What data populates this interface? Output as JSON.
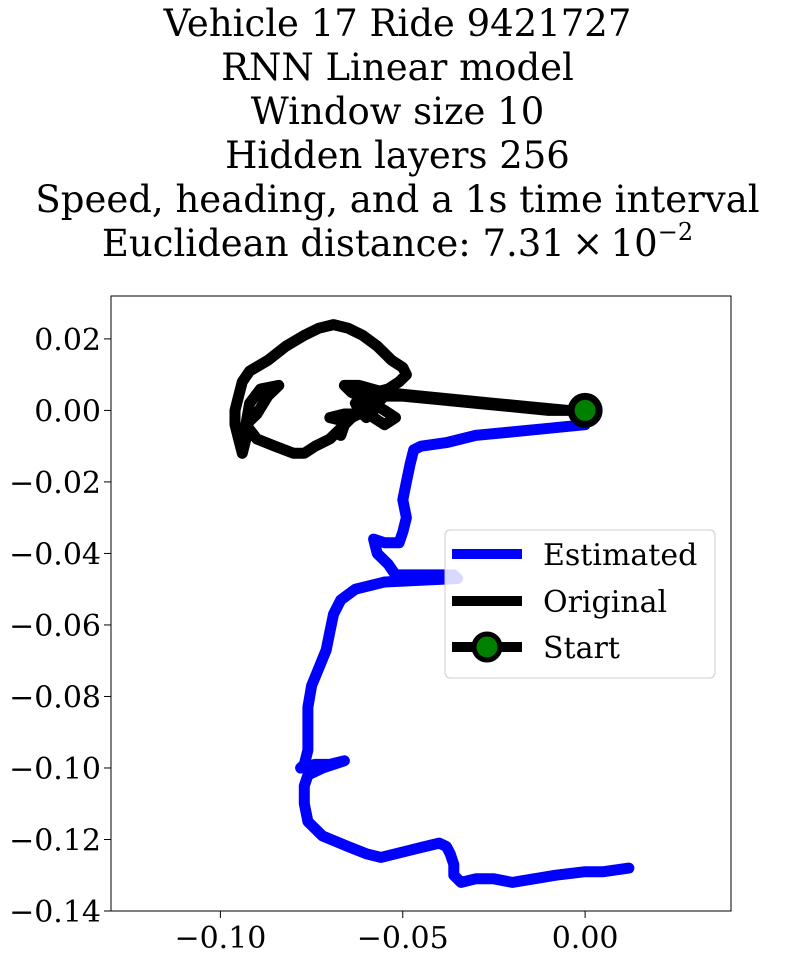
{
  "title": {
    "line1": "Vehicle 17 Ride 9421727",
    "line2": "RNN Linear model",
    "line3": "Window size 10",
    "line4": "Hidden layers 256",
    "line5": "Speed, heading, and a 1s time interval",
    "line6_prefix": "Euclidean distance: 7.31 × 10",
    "line6_exponent": "−2"
  },
  "chart_data": {
    "type": "line",
    "xlim": [
      -0.13,
      0.04
    ],
    "ylim": [
      -0.14,
      0.032
    ],
    "xticks": [
      -0.1,
      -0.05,
      0.0
    ],
    "xtick_labels": [
      "−0.10",
      "−0.05",
      "0.00"
    ],
    "yticks": [
      0.02,
      0.0,
      -0.02,
      -0.04,
      -0.06,
      -0.08,
      -0.1,
      -0.12,
      -0.14
    ],
    "ytick_labels": [
      "0.02",
      "0.00",
      "−0.02",
      "−0.04",
      "−0.06",
      "−0.08",
      "−0.10",
      "−0.12",
      "−0.14"
    ],
    "grid": false,
    "legend_position": "center-right",
    "series": [
      {
        "name": "Estimated",
        "color": "#0000ff",
        "points": [
          [
            0.0,
            -0.004
          ],
          [
            -0.01,
            -0.005
          ],
          [
            -0.02,
            -0.006
          ],
          [
            -0.03,
            -0.007
          ],
          [
            -0.038,
            -0.009
          ],
          [
            -0.045,
            -0.01
          ],
          [
            -0.047,
            -0.011
          ],
          [
            -0.048,
            -0.015
          ],
          [
            -0.049,
            -0.02
          ],
          [
            -0.05,
            -0.025
          ],
          [
            -0.049,
            -0.03
          ],
          [
            -0.05,
            -0.034
          ],
          [
            -0.051,
            -0.037
          ],
          [
            -0.055,
            -0.037
          ],
          [
            -0.058,
            -0.036
          ],
          [
            -0.057,
            -0.04
          ],
          [
            -0.054,
            -0.043
          ],
          [
            -0.052,
            -0.046
          ],
          [
            -0.046,
            -0.046
          ],
          [
            -0.041,
            -0.046
          ],
          [
            -0.036,
            -0.046
          ],
          [
            -0.035,
            -0.047
          ],
          [
            -0.055,
            -0.048
          ],
          [
            -0.063,
            -0.05
          ],
          [
            -0.067,
            -0.053
          ],
          [
            -0.069,
            -0.057
          ],
          [
            -0.07,
            -0.062
          ],
          [
            -0.071,
            -0.067
          ],
          [
            -0.073,
            -0.072
          ],
          [
            -0.075,
            -0.077
          ],
          [
            -0.076,
            -0.083
          ],
          [
            -0.076,
            -0.09
          ],
          [
            -0.076,
            -0.095
          ],
          [
            -0.077,
            -0.099
          ],
          [
            -0.078,
            -0.1
          ],
          [
            -0.074,
            -0.099
          ],
          [
            -0.07,
            -0.099
          ],
          [
            -0.066,
            -0.098
          ],
          [
            -0.072,
            -0.1
          ],
          [
            -0.076,
            -0.102
          ],
          [
            -0.077,
            -0.105
          ],
          [
            -0.077,
            -0.11
          ],
          [
            -0.076,
            -0.115
          ],
          [
            -0.072,
            -0.119
          ],
          [
            -0.065,
            -0.122
          ],
          [
            -0.06,
            -0.124
          ],
          [
            -0.056,
            -0.125
          ],
          [
            -0.052,
            -0.124
          ],
          [
            -0.048,
            -0.123
          ],
          [
            -0.044,
            -0.122
          ],
          [
            -0.04,
            -0.121
          ],
          [
            -0.038,
            -0.122
          ],
          [
            -0.037,
            -0.124
          ],
          [
            -0.036,
            -0.127
          ],
          [
            -0.036,
            -0.13
          ],
          [
            -0.034,
            -0.132
          ],
          [
            -0.03,
            -0.131
          ],
          [
            -0.025,
            -0.131
          ],
          [
            -0.02,
            -0.132
          ],
          [
            -0.014,
            -0.131
          ],
          [
            -0.008,
            -0.13
          ],
          [
            0.0,
            -0.129
          ],
          [
            0.005,
            -0.129
          ],
          [
            0.012,
            -0.128
          ]
        ]
      },
      {
        "name": "Original",
        "color": "#000000",
        "points": [
          [
            0.0,
            0.0
          ],
          [
            -0.01,
            0.0
          ],
          [
            -0.02,
            0.001
          ],
          [
            -0.03,
            0.002
          ],
          [
            -0.04,
            0.003
          ],
          [
            -0.05,
            0.004
          ],
          [
            -0.055,
            0.004
          ],
          [
            -0.057,
            0.002
          ],
          [
            -0.06,
            -0.002
          ],
          [
            -0.062,
            0.0
          ],
          [
            -0.063,
            0.002
          ],
          [
            -0.061,
            0.004
          ],
          [
            -0.058,
            0.005
          ],
          [
            -0.054,
            0.006
          ],
          [
            -0.051,
            0.008
          ],
          [
            -0.049,
            0.01
          ],
          [
            -0.05,
            0.012
          ],
          [
            -0.053,
            0.014
          ],
          [
            -0.057,
            0.018
          ],
          [
            -0.061,
            0.021
          ],
          [
            -0.065,
            0.023
          ],
          [
            -0.069,
            0.024
          ],
          [
            -0.073,
            0.023
          ],
          [
            -0.077,
            0.021
          ],
          [
            -0.082,
            0.018
          ],
          [
            -0.087,
            0.014
          ],
          [
            -0.092,
            0.011
          ],
          [
            -0.094,
            0.008
          ],
          [
            -0.095,
            0.004
          ],
          [
            -0.096,
            0.0
          ],
          [
            -0.096,
            -0.004
          ],
          [
            -0.095,
            -0.008
          ],
          [
            -0.094,
            -0.012
          ],
          [
            -0.093,
            -0.008
          ],
          [
            -0.093,
            -0.004
          ],
          [
            -0.09,
            -0.001
          ],
          [
            -0.087,
            0.004
          ],
          [
            -0.084,
            0.007
          ],
          [
            -0.089,
            0.006
          ],
          [
            -0.092,
            0.002
          ],
          [
            -0.093,
            -0.004
          ],
          [
            -0.09,
            -0.008
          ],
          [
            -0.085,
            -0.01
          ],
          [
            -0.08,
            -0.012
          ],
          [
            -0.077,
            -0.012
          ],
          [
            -0.074,
            -0.01
          ],
          [
            -0.07,
            -0.008
          ],
          [
            -0.067,
            -0.005
          ],
          [
            -0.064,
            -0.002
          ],
          [
            -0.062,
            -0.001
          ],
          [
            -0.066,
            -0.001
          ],
          [
            -0.07,
            -0.002
          ],
          [
            -0.066,
            -0.003
          ],
          [
            -0.067,
            -0.007
          ],
          [
            -0.066,
            -0.004
          ],
          [
            -0.063,
            -0.001
          ],
          [
            -0.061,
            0.002
          ],
          [
            -0.059,
            0.002
          ],
          [
            -0.058,
            -0.002
          ],
          [
            -0.055,
            -0.004
          ],
          [
            -0.052,
            -0.002
          ],
          [
            -0.055,
            0.0
          ],
          [
            -0.06,
            0.003
          ],
          [
            -0.064,
            0.005
          ],
          [
            -0.066,
            0.007
          ],
          [
            -0.062,
            0.007
          ],
          [
            -0.055,
            0.005
          ],
          [
            -0.045,
            0.004
          ],
          [
            -0.035,
            0.003
          ],
          [
            -0.025,
            0.002
          ],
          [
            -0.015,
            0.001
          ],
          [
            -0.005,
            0.0
          ],
          [
            0.0,
            0.0
          ]
        ]
      }
    ],
    "start": {
      "name": "Start",
      "point": [
        0.0,
        0.0
      ],
      "marker_edge_color": "#000000",
      "marker_face_color": "#008000"
    }
  }
}
